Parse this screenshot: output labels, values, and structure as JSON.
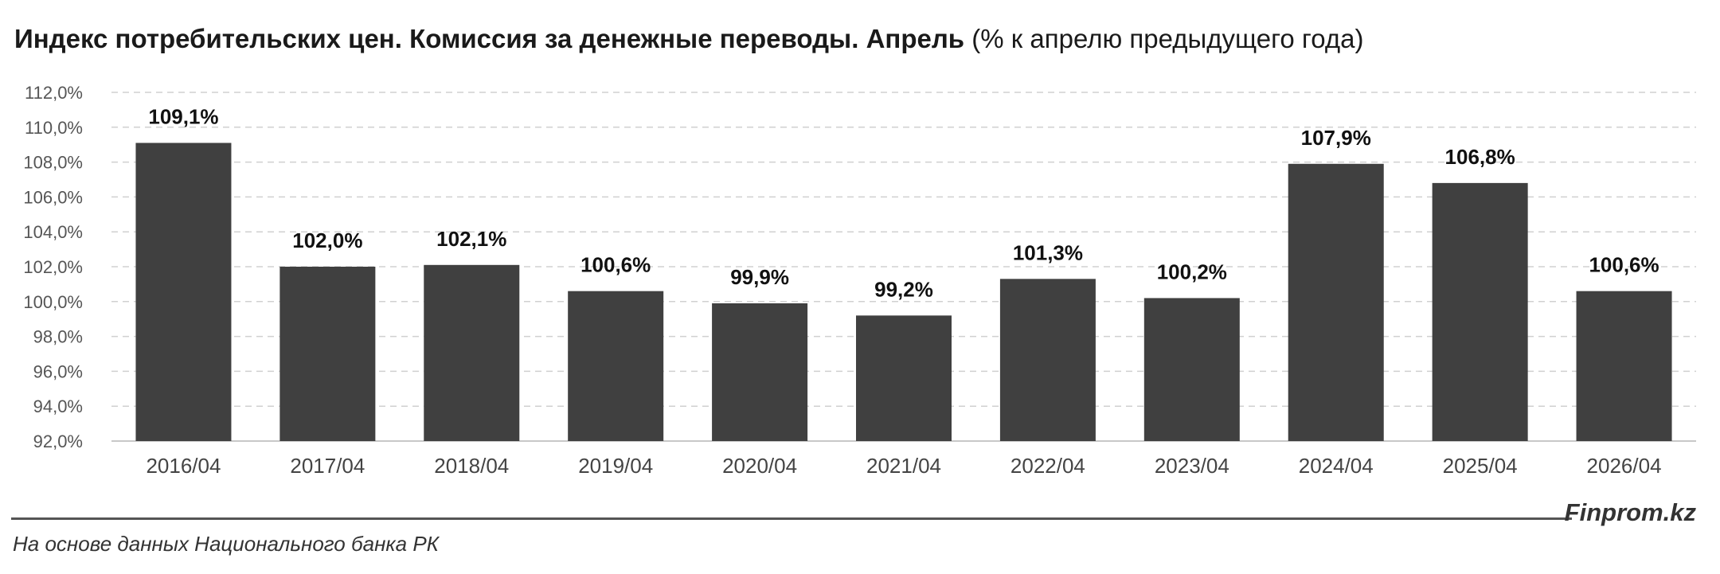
{
  "title_bold": "Индекс потребительских цен. Комиссия за денежные переводы. Апрель",
  "title_normal": "(% к апрелю предыдущего года)",
  "brand": "Finprom.kz",
  "source": "На основе данных Национального банка РК",
  "chart_data": {
    "type": "bar",
    "categories": [
      "2016/04",
      "2017/04",
      "2018/04",
      "2019/04",
      "2020/04",
      "2021/04",
      "2022/04",
      "2023/04",
      "2024/04",
      "2025/04",
      "2026/04"
    ],
    "values": [
      109.1,
      102.0,
      102.1,
      100.6,
      99.9,
      99.2,
      101.3,
      100.2,
      107.9,
      106.8,
      100.6
    ],
    "data_labels": [
      "109,1%",
      "102,0%",
      "102,1%",
      "100,6%",
      "99,9%",
      "99,2%",
      "101,3%",
      "100,2%",
      "107,9%",
      "106,8%",
      "100,6%"
    ],
    "ylim": [
      92,
      112
    ],
    "yticks": [
      92,
      94,
      96,
      98,
      100,
      102,
      104,
      106,
      108,
      110,
      112
    ],
    "ytick_labels": [
      "92,0%",
      "94,0%",
      "96,0%",
      "98,0%",
      "100,0%",
      "102,0%",
      "104,0%",
      "106,0%",
      "108,0%",
      "110,0%",
      "112,0%"
    ],
    "grid": true,
    "bar_color": "#404040",
    "grid_color": "#d0d0d0"
  }
}
